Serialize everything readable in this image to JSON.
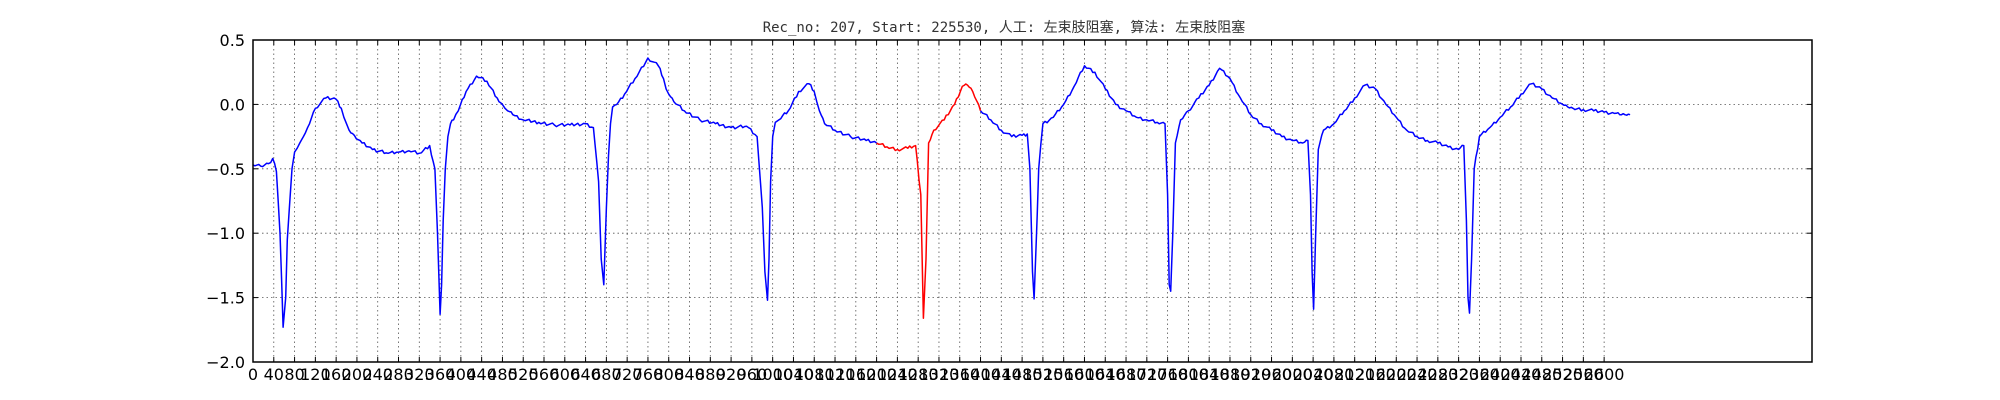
{
  "chart_data": {
    "type": "line",
    "title": "Rec_no: 207, Start: 225530, 人工: 左束肢阻塞, 算法: 左束肢阻塞",
    "xlabel": "",
    "ylabel": "",
    "xlim": [
      0,
      3000
    ],
    "ylim": [
      -2.0,
      0.5
    ],
    "grid": true,
    "grid_style": "dotted",
    "yticks": [
      -2.0,
      -1.5,
      -1.0,
      -0.5,
      0.0,
      0.5
    ],
    "ytick_labels": [
      "−2.0",
      "−1.5",
      "−1.0",
      "−0.5",
      "0.0",
      "0.5"
    ],
    "xticks": [
      0,
      40,
      80,
      120,
      160,
      200,
      240,
      280,
      320,
      360,
      400,
      440,
      480,
      520,
      560,
      600,
      640,
      680,
      720,
      760,
      800,
      840,
      880,
      920,
      960,
      1000,
      1040,
      1080,
      1120,
      1160,
      1200,
      1240,
      1280,
      1320,
      1360,
      1400,
      1440,
      1480,
      1520,
      1560,
      1600,
      1640,
      1680,
      1720,
      1760,
      1800,
      1840,
      1880,
      1920,
      1960,
      2000,
      2040,
      2080,
      2120,
      2160,
      2200,
      2240,
      2280,
      2320,
      2360,
      2400,
      2440,
      2480,
      2520,
      2560,
      2600
    ],
    "xtick_labels": [
      "0",
      "40",
      "80",
      "120",
      "160",
      "200",
      "240",
      "280",
      "320",
      "360",
      "400",
      "440",
      "480",
      "520",
      "560",
      "600",
      "640",
      "680",
      "720",
      "760",
      "800",
      "840",
      "880",
      "920",
      "960",
      "1000",
      "1040",
      "1080",
      "1120",
      "1160",
      "1200",
      "1240",
      "1280",
      "1320",
      "1360",
      "1400",
      "1440",
      "1480",
      "1520",
      "1560",
      "1600",
      "1640",
      "1680",
      "1720",
      "1760",
      "1800",
      "1840",
      "1880",
      "1920",
      "1960",
      "2000",
      "2040",
      "2080",
      "2120",
      "2160",
      "2200",
      "2240",
      "2280",
      "2320",
      "2360",
      "2400",
      "2440",
      "2480",
      "2520",
      "2560",
      "2600"
    ],
    "series": [
      {
        "color": "#0000ff",
        "x": [
          0,
          15,
          30,
          38,
          45,
          52,
          58,
          63,
          66,
          70,
          75,
          80,
          85,
          90,
          97,
          105,
          120,
          140,
          160,
          170,
          175,
          180,
          185,
          195,
          210,
          230,
          260,
          280,
          300,
          320,
          340,
          350,
          355,
          360,
          363,
          366,
          370,
          375,
          380,
          386,
          395,
          410,
          430,
          450,
          470,
          480,
          485,
          490,
          500,
          520,
          550,
          580,
          610,
          640,
          655,
          665,
          670,
          675,
          680,
          684,
          688,
          692,
          700,
          715,
          735,
          760,
          780,
          790,
          795,
          800,
          810,
          830,
          860,
          890,
          920,
          950,
          970,
          980,
          985,
          990,
          993,
          996,
          1000,
          1005,
          1012,
          1030,
          1050,
          1070,
          1080,
          1085,
          1090,
          1100,
          1120,
          1150,
          1180,
          1200
        ],
        "y": [
          -0.47,
          -0.48,
          -0.46,
          -0.42,
          -0.52,
          -1.0,
          -1.73,
          -1.5,
          -1.05,
          -0.8,
          -0.5,
          -0.37,
          -0.34,
          -0.3,
          -0.25,
          -0.18,
          -0.03,
          0.05,
          0.04,
          -0.03,
          -0.1,
          -0.15,
          -0.2,
          -0.24,
          -0.3,
          -0.35,
          -0.38,
          -0.37,
          -0.36,
          -0.38,
          -0.32,
          -0.5,
          -1.0,
          -1.63,
          -1.4,
          -0.9,
          -0.5,
          -0.25,
          -0.15,
          -0.12,
          -0.05,
          0.1,
          0.22,
          0.18,
          0.05,
          0.0,
          -0.03,
          -0.05,
          -0.08,
          -0.12,
          -0.14,
          -0.16,
          -0.16,
          -0.15,
          -0.18,
          -0.6,
          -1.2,
          -1.4,
          -0.8,
          -0.4,
          -0.15,
          -0.02,
          0.0,
          0.08,
          0.2,
          0.36,
          0.3,
          0.2,
          0.12,
          0.08,
          0.02,
          -0.05,
          -0.12,
          -0.15,
          -0.18,
          -0.17,
          -0.25,
          -0.8,
          -1.3,
          -1.52,
          -1.2,
          -0.6,
          -0.25,
          -0.14,
          -0.12,
          -0.05,
          0.1,
          0.16,
          0.1,
          0.02,
          -0.05,
          -0.15,
          -0.2,
          -0.25,
          -0.28,
          -0.3
        ]
      },
      {
        "color": "#ff0000",
        "x": [
          1200,
          1220,
          1240,
          1260,
          1275,
          1285,
          1290,
          1295,
          1300,
          1310,
          1330,
          1350,
          1365,
          1375,
          1385,
          1400
        ],
        "y": [
          -0.3,
          -0.33,
          -0.35,
          -0.34,
          -0.32,
          -0.7,
          -1.66,
          -1.2,
          -0.3,
          -0.2,
          -0.12,
          0.0,
          0.14,
          0.15,
          0.1,
          -0.05
        ]
      },
      {
        "color": "#0000ff",
        "x": [
          1400,
          1420,
          1440,
          1460,
          1480,
          1490,
          1495,
          1500,
          1503,
          1506,
          1512,
          1520,
          1540,
          1560,
          1580,
          1600,
          1620,
          1640,
          1660,
          1680,
          1700,
          1720,
          1740,
          1755,
          1760,
          1763,
          1766,
          1770,
          1775,
          1785,
          1800,
          1820,
          1840,
          1860,
          1880,
          1900,
          1920,
          1940,
          1960,
          1980,
          2000,
          2020,
          2030,
          2035,
          2038,
          2041,
          2045,
          2050,
          2060,
          2080,
          2100,
          2120,
          2140,
          2160,
          2180,
          2200,
          2220,
          2240,
          2260,
          2280,
          2300,
          2320,
          2330,
          2335,
          2338,
          2341,
          2345,
          2350,
          2360,
          2380,
          2400,
          2420,
          2440,
          2460,
          2480,
          2500,
          2520,
          2530,
          2540,
          2560,
          2580,
          2600,
          2620,
          2630,
          2640,
          2650
        ],
        "y": [
          -0.05,
          -0.12,
          -0.2,
          -0.25,
          -0.24,
          -0.23,
          -0.5,
          -1.3,
          -1.51,
          -1.2,
          -0.5,
          -0.15,
          -0.1,
          0.0,
          0.14,
          0.3,
          0.25,
          0.12,
          0.0,
          -0.05,
          -0.1,
          -0.12,
          -0.14,
          -0.15,
          -0.7,
          -1.4,
          -1.45,
          -1.0,
          -0.3,
          -0.12,
          -0.05,
          0.05,
          0.15,
          0.28,
          0.2,
          0.05,
          -0.08,
          -0.15,
          -0.2,
          -0.25,
          -0.28,
          -0.3,
          -0.28,
          -0.7,
          -1.3,
          -1.59,
          -1.0,
          -0.35,
          -0.2,
          -0.15,
          -0.05,
          0.05,
          0.15,
          0.12,
          0.0,
          -0.1,
          -0.2,
          -0.25,
          -0.28,
          -0.3,
          -0.33,
          -0.35,
          -0.32,
          -0.9,
          -1.5,
          -1.62,
          -1.2,
          -0.5,
          -0.25,
          -0.18,
          -0.1,
          -0.02,
          0.08,
          0.16,
          0.12,
          0.05,
          0.0,
          -0.02,
          -0.03,
          -0.04,
          -0.05,
          -0.06,
          -0.07,
          -0.08,
          -0.08,
          -0.08
        ]
      }
    ]
  }
}
